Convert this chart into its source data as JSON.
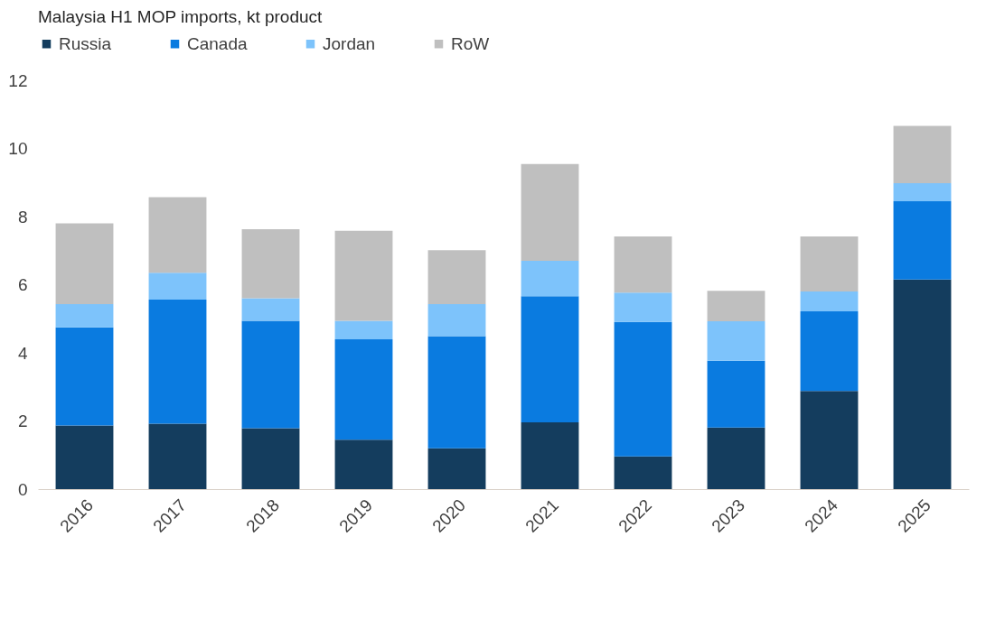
{
  "chart_data": {
    "type": "bar",
    "title": "Malaysia H1 MOP imports, kt product",
    "stacked": true,
    "legend": "top",
    "grid": false,
    "categories": [
      "2016",
      "2017",
      "2018",
      "2019",
      "2020",
      "2021",
      "2022",
      "2023",
      "2024",
      "2025"
    ],
    "ylim": [
      0,
      12
    ],
    "yticks": [
      0,
      2,
      4,
      6,
      8,
      10,
      12
    ],
    "series": [
      {
        "name": "Russia",
        "color": "#143d5e",
        "values": [
          1.87,
          1.92,
          1.79,
          1.45,
          1.2,
          1.96,
          0.96,
          1.81,
          2.88,
          6.15
        ]
      },
      {
        "name": "Canada",
        "color": "#0a7be0",
        "values": [
          2.88,
          3.64,
          3.15,
          2.95,
          3.29,
          3.7,
          3.95,
          1.96,
          2.34,
          2.3
        ]
      },
      {
        "name": "Jordan",
        "color": "#7dc3fb",
        "values": [
          0.68,
          0.79,
          0.66,
          0.54,
          0.94,
          1.04,
          0.86,
          1.16,
          0.58,
          0.53
        ]
      },
      {
        "name": "RoW",
        "color": "#bfbfbf",
        "values": [
          2.37,
          2.22,
          2.03,
          2.64,
          1.58,
          2.84,
          1.65,
          0.89,
          1.62,
          1.68
        ]
      }
    ]
  }
}
